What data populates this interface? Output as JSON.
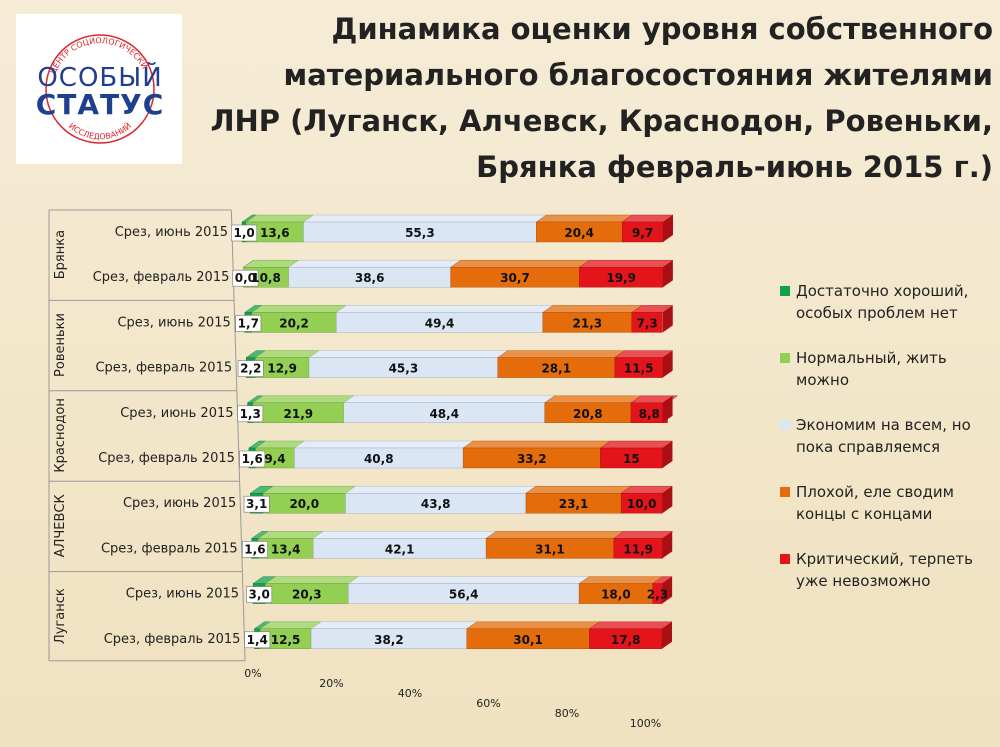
{
  "logo": {
    "top_text": "ЦЕНТР СОЦИОЛОГИЧЕСКИХ",
    "word1": "ОСОБЫЙ",
    "word2": "СТАТУС",
    "bottom_text": "ИССЛЕДОВАНИЙ"
  },
  "title_lines": [
    "Динамика оценки уровня собственного",
    "материального благосостояния жителями",
    "ЛНР (Луганск, Алчевск, Краснодон, Ровеньки,",
    "Брянка февраль-июнь 2015 г.)"
  ],
  "chart_data": {
    "type": "bar",
    "orientation": "horizontal",
    "stacked": "percent",
    "title": "Динамика оценки уровня собственного материального благосостояния жителями ЛНР (Луганск, Алчевск, Краснодон, Ровеньки, Брянка февраль-июнь 2015 г.)",
    "xlim": [
      0,
      100
    ],
    "ticks": [
      "0%",
      "20%",
      "40%",
      "60%",
      "80%",
      "100%"
    ],
    "legend_position": "right",
    "series": [
      {
        "name": "Достаточно хороший, особых проблем нет",
        "color": "#14a04a"
      },
      {
        "name": "Нормальный, жить можно",
        "color": "#92cf52"
      },
      {
        "name": "Экономим на всем, но пока справляемся",
        "color": "#dbe6f5"
      },
      {
        "name": "Плохой, еле сводим концы с концами",
        "color": "#e46c0a"
      },
      {
        "name": "Критический, терпеть уже невозможно",
        "color": "#e3141a"
      }
    ],
    "groups": [
      {
        "name": "Брянка",
        "rows": [
          {
            "label": "Срез, июнь 2015",
            "values": [
              1.0,
              13.6,
              55.3,
              20.4,
              9.7
            ],
            "labels": [
              "1,0",
              "13,6",
              "55,3",
              "20,4",
              "9,7"
            ]
          },
          {
            "label": "Срез, февраль 2015",
            "values": [
              0.0,
              10.8,
              38.6,
              30.7,
              19.9
            ],
            "labels": [
              "0,0",
              "10,8",
              "38,6",
              "30,7",
              "19,9"
            ]
          }
        ]
      },
      {
        "name": "Ровеньки",
        "rows": [
          {
            "label": "Срез, июнь 2015",
            "values": [
              1.7,
              20.2,
              49.4,
              21.3,
              7.3
            ],
            "labels": [
              "1,7",
              "20,2",
              "49,4",
              "21,3",
              "7,3"
            ]
          },
          {
            "label": "Срез, февраль 2015",
            "values": [
              2.2,
              12.9,
              45.3,
              28.1,
              11.5
            ],
            "labels": [
              "2,2",
              "12,9",
              "45,3",
              "28,1",
              "11,5"
            ]
          }
        ]
      },
      {
        "name": "Краснодон",
        "rows": [
          {
            "label": "Срез, июнь 2015",
            "values": [
              1.3,
              21.9,
              48.4,
              20.8,
              8.8
            ],
            "labels": [
              "1,3",
              "21,9",
              "48,4",
              "20,8",
              "8,8"
            ]
          },
          {
            "label": "Срез, февраль 2015",
            "values": [
              1.6,
              9.4,
              40.8,
              33.2,
              15.0
            ],
            "labels": [
              "1,6",
              "9,4",
              "40,8",
              "33,2",
              "15"
            ]
          }
        ]
      },
      {
        "name": "АЛЧЕВСК",
        "rows": [
          {
            "label": "Срез, июнь 2015",
            "values": [
              3.1,
              20.0,
              43.8,
              23.1,
              10.0
            ],
            "labels": [
              "3,1",
              "20,0",
              "43,8",
              "23,1",
              "10,0"
            ]
          },
          {
            "label": "Срез, февраль 2015",
            "values": [
              1.6,
              13.4,
              42.1,
              31.1,
              11.9
            ],
            "labels": [
              "1,6",
              "13,4",
              "42,1",
              "31,1",
              "11,9"
            ]
          }
        ]
      },
      {
        "name": "Луганск",
        "rows": [
          {
            "label": "Срез, июнь 2015",
            "values": [
              3.0,
              20.3,
              56.4,
              18.0,
              2.3
            ],
            "labels": [
              "3,0",
              "20,3",
              "56,4",
              "18,0",
              "2,3"
            ]
          },
          {
            "label": "Срез, февраль 2015",
            "values": [
              1.4,
              12.5,
              38.2,
              30.1,
              17.8
            ],
            "labels": [
              "1,4",
              "12,5",
              "38,2",
              "30,1",
              "17,8"
            ]
          }
        ]
      }
    ]
  }
}
